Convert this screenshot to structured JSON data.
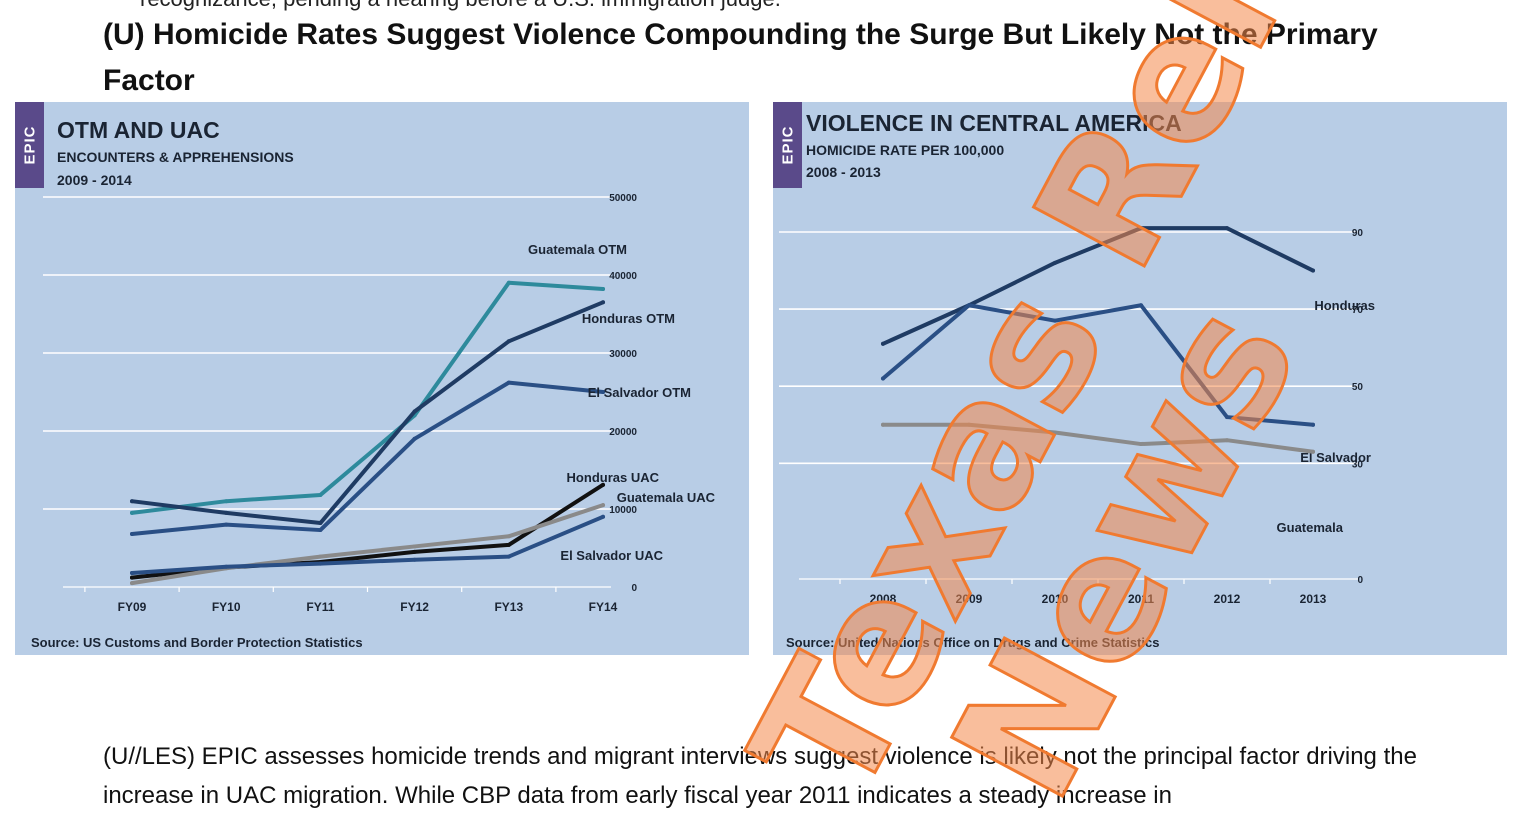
{
  "document": {
    "cut_line": "recognizance, pending a hearing before a U.S. immigration judge.",
    "heading": "(U) Homicide Rates Suggest Violence Compounding the Surge But Likely Not the Primary Factor",
    "body_text": "(U//LES) EPIC assesses homicide trends and migrant interviews suggest violence is likely not the principal factor driving the increase in UAC migration. While CBP data from early fiscal year 2011 indicates a steady increase in"
  },
  "watermark": {
    "line1": "Texas Release",
    "line2": "News",
    "color": "#f4894a"
  },
  "chart_data": [
    {
      "type": "line",
      "badge": "EPIC",
      "title": "OTM AND UAC",
      "subtitle": "ENCOUNTERS & APPREHENSIONS",
      "period": "2009 - 2014",
      "source": "Source: US Customs and Border Protection Statistics",
      "categories": [
        "FY09",
        "FY10",
        "FY11",
        "FY12",
        "FY13",
        "FY14"
      ],
      "y_ticks": [
        "0",
        "10000",
        "20000",
        "30000",
        "40000",
        "50000"
      ],
      "ylim": [
        0,
        50000
      ],
      "grid": true,
      "series": [
        {
          "name": "Guatemala OTM",
          "color": "#2e8a9c",
          "values": [
            9500,
            11000,
            11800,
            22000,
            39000,
            38200
          ]
        },
        {
          "name": "Honduras OTM",
          "color": "#1f3b63",
          "values": [
            11000,
            9500,
            8200,
            22500,
            31500,
            36500
          ]
        },
        {
          "name": "El Salvador OTM",
          "color": "#2a4f85",
          "values": [
            6800,
            8000,
            7300,
            19000,
            26200,
            25000
          ]
        },
        {
          "name": "Honduras UAC",
          "color": "#111111",
          "values": [
            1200,
            2500,
            3200,
            4500,
            5400,
            13100
          ]
        },
        {
          "name": "Guatemala UAC",
          "color": "#8a8a8a",
          "values": [
            500,
            2400,
            3900,
            5200,
            6500,
            10500
          ]
        },
        {
          "name": "El Salvador UAC",
          "color": "#2a4f85",
          "values": [
            1800,
            2600,
            3000,
            3500,
            3900,
            9000
          ]
        }
      ]
    },
    {
      "type": "line",
      "badge": "EPIC",
      "title": "VIOLENCE IN CENTRAL AMERICA",
      "subtitle": "HOMICIDE RATE PER 100,000",
      "period": "2008 - 2013",
      "source": "Source: United Nations Office on Drugs and Crime Statistics",
      "categories": [
        "2008",
        "2009",
        "2010",
        "2011",
        "2012",
        "2013"
      ],
      "y_ticks": [
        "0",
        "30",
        "50",
        "70",
        "90"
      ],
      "ylim": [
        0,
        90
      ],
      "grid": true,
      "series": [
        {
          "name": "Honduras",
          "color": "#1f3b63",
          "values": [
            61,
            71,
            82,
            91,
            91,
            80
          ]
        },
        {
          "name": "El Salvador",
          "color": "#2a4f85",
          "values": [
            52,
            71,
            67,
            71,
            42,
            40
          ]
        },
        {
          "name": "Guatemala",
          "color": "#8a8a8a",
          "values": [
            40,
            40,
            38,
            35,
            36,
            33
          ]
        }
      ]
    }
  ]
}
